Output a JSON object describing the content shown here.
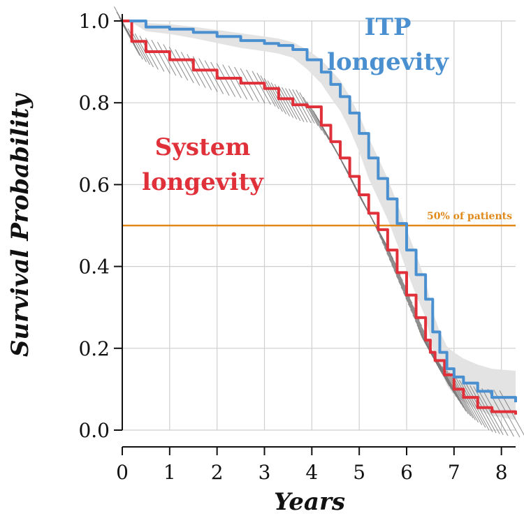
{
  "chart_data": {
    "type": "line",
    "title": "",
    "xlabel": "Years",
    "ylabel": "Survival Probability",
    "xlim": [
      0,
      8.3
    ],
    "ylim": [
      0,
      1.0
    ],
    "xticks": [
      "0",
      "1",
      "2",
      "3",
      "4",
      "5",
      "6",
      "7",
      "8"
    ],
    "yticks": [
      "0.0",
      "0.2",
      "0.4",
      "0.6",
      "0.8",
      "1.0"
    ],
    "grid": true,
    "reference_line": {
      "y": 0.5,
      "label": "50% of patients",
      "color": "#e0891a"
    },
    "series": [
      {
        "name": "ITP longevity",
        "label_lines": [
          "ITP",
          "longevity"
        ],
        "color": "#4a90d0",
        "band_color": "#e3e3e3",
        "x": [
          0.15,
          0.5,
          1.0,
          1.5,
          2.0,
          2.5,
          3.0,
          3.3,
          3.6,
          3.9,
          4.2,
          4.4,
          4.6,
          4.8,
          5.0,
          5.2,
          5.4,
          5.6,
          5.8,
          6.0,
          6.2,
          6.4,
          6.55,
          6.7,
          6.85,
          7.0,
          7.2,
          7.5,
          7.8,
          8.3
        ],
        "y": [
          1.0,
          0.985,
          0.98,
          0.972,
          0.962,
          0.952,
          0.945,
          0.94,
          0.93,
          0.905,
          0.875,
          0.845,
          0.815,
          0.775,
          0.725,
          0.665,
          0.615,
          0.565,
          0.505,
          0.44,
          0.38,
          0.32,
          0.24,
          0.19,
          0.15,
          0.13,
          0.115,
          0.095,
          0.08,
          0.068
        ],
        "ci_upper": [
          1.0,
          0.995,
          0.992,
          0.986,
          0.978,
          0.97,
          0.962,
          0.957,
          0.948,
          0.93,
          0.905,
          0.88,
          0.855,
          0.815,
          0.77,
          0.715,
          0.665,
          0.615,
          0.555,
          0.49,
          0.43,
          0.365,
          0.29,
          0.24,
          0.205,
          0.19,
          0.175,
          0.16,
          0.15,
          0.145
        ],
        "ci_lower": [
          1.0,
          0.975,
          0.968,
          0.958,
          0.946,
          0.934,
          0.926,
          0.92,
          0.91,
          0.882,
          0.847,
          0.812,
          0.78,
          0.735,
          0.68,
          0.615,
          0.565,
          0.515,
          0.455,
          0.39,
          0.33,
          0.275,
          0.2,
          0.15,
          0.11,
          0.085,
          0.07,
          0.05,
          0.035,
          0.025
        ]
      },
      {
        "name": "System longevity",
        "label_lines": [
          "System",
          "longevity"
        ],
        "color": "#e0313b",
        "band_color": "#777777",
        "x": [
          0.0,
          0.2,
          0.5,
          1.0,
          1.5,
          2.0,
          2.5,
          3.0,
          3.3,
          3.6,
          3.9,
          4.2,
          4.4,
          4.6,
          4.8,
          5.0,
          5.2,
          5.4,
          5.6,
          5.8,
          6.0,
          6.2,
          6.4,
          6.5,
          6.6,
          6.8,
          7.0,
          7.2,
          7.5,
          7.8,
          8.3
        ],
        "y": [
          1.0,
          0.95,
          0.925,
          0.905,
          0.88,
          0.86,
          0.848,
          0.835,
          0.81,
          0.795,
          0.79,
          0.745,
          0.705,
          0.665,
          0.62,
          0.575,
          0.53,
          0.49,
          0.44,
          0.385,
          0.33,
          0.275,
          0.22,
          0.19,
          0.17,
          0.135,
          0.1,
          0.08,
          0.055,
          0.045,
          0.038
        ]
      }
    ]
  }
}
